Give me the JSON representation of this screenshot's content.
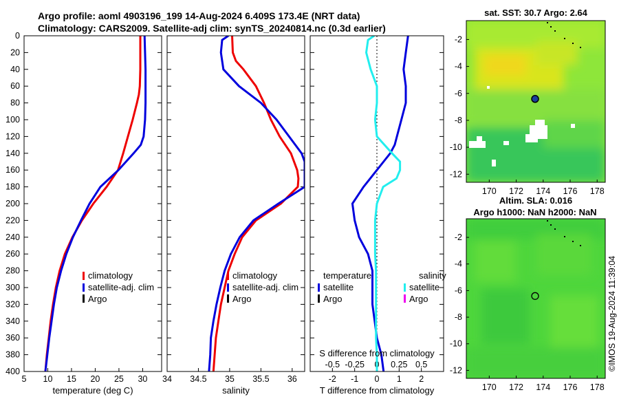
{
  "header": {
    "line1": "Argo profile: aoml  4903196_199 14-Aug-2024 6.409S 173.4E (NRT data)",
    "line2": "Climatology: CARS2009. Satellite-adj clim: synTS_20240814.nc (0.3d earlier)"
  },
  "colors": {
    "climatology": "#ee0000",
    "satellite": "#0000dd",
    "satellite_salinity": "#22eeee",
    "argo": "#000000",
    "argo_salinity": "#ee00ee"
  },
  "depth_axis": {
    "ylim": [
      0,
      400
    ],
    "ticks": [
      "0",
      "20",
      "40",
      "60",
      "80",
      "100",
      "120",
      "140",
      "160",
      "180",
      "200",
      "220",
      "240",
      "260",
      "280",
      "300",
      "320",
      "340",
      "360",
      "380",
      "400"
    ]
  },
  "legend_profile": {
    "climatology": "climatology",
    "satellite": "satellite-adj. clim",
    "argo": "Argo"
  },
  "legend_diff": {
    "temperature_header": "temperature",
    "salinity_header": "salinity",
    "t_satellite": "satellite",
    "t_argo": "Argo",
    "s_satellite": "satellite",
    "s_argo": "Argo"
  },
  "chart_data": [
    {
      "type": "line",
      "name": "temperature-profile",
      "xlabel": "temperature (deg C)",
      "ylabel": "depth",
      "xlim": [
        5,
        34
      ],
      "ylim": [
        0,
        400
      ],
      "xticks": [
        "5",
        "10",
        "15",
        "20",
        "25",
        "30"
      ],
      "series": [
        {
          "name": "climatology",
          "depth": [
            0,
            20,
            40,
            60,
            70,
            80,
            100,
            120,
            140,
            160,
            180,
            200,
            220,
            240,
            260,
            280,
            300,
            320,
            340,
            360,
            380,
            400
          ],
          "values": [
            29.5,
            29.5,
            29.5,
            29.4,
            29.2,
            28.8,
            27.9,
            26.9,
            25.9,
            24.8,
            22.4,
            19.6,
            17.2,
            15.2,
            13.6,
            12.5,
            11.7,
            11.1,
            10.6,
            10.2,
            9.8,
            9.5
          ]
        },
        {
          "name": "satellite-adj. clim",
          "depth": [
            0,
            20,
            40,
            60,
            80,
            100,
            120,
            130,
            140,
            160,
            180,
            200,
            220,
            240,
            260,
            280,
            300,
            320,
            340,
            360,
            380,
            400
          ],
          "values": [
            30.4,
            30.5,
            30.6,
            30.6,
            30.6,
            30.5,
            30.2,
            29.6,
            28.1,
            24.9,
            21.1,
            18.8,
            17.0,
            15.3,
            13.9,
            12.8,
            11.9,
            11.3,
            10.8,
            10.3,
            9.9,
            9.5
          ]
        }
      ]
    },
    {
      "type": "line",
      "name": "salinity-profile",
      "xlabel": "salinity",
      "ylabel": "depth",
      "xlim": [
        34.0,
        36.2
      ],
      "ylim": [
        0,
        400
      ],
      "xticks": [
        "34",
        "34.5",
        "35",
        "35.5",
        "36"
      ],
      "series": [
        {
          "name": "climatology",
          "depth": [
            0,
            20,
            30,
            40,
            60,
            80,
            100,
            120,
            140,
            160,
            170,
            180,
            200,
            220,
            240,
            260,
            280,
            300,
            320,
            340,
            360,
            380,
            400
          ],
          "values": [
            35.04,
            35.05,
            35.1,
            35.22,
            35.42,
            35.55,
            35.66,
            35.8,
            35.98,
            36.08,
            36.1,
            36.09,
            35.82,
            35.42,
            35.2,
            35.08,
            34.98,
            34.92,
            34.86,
            34.82,
            34.78,
            34.76,
            34.74
          ]
        },
        {
          "name": "satellite-adj. clim",
          "depth": [
            0,
            5,
            20,
            40,
            60,
            80,
            100,
            120,
            140,
            150,
            160,
            170,
            180,
            200,
            220,
            240,
            260,
            280,
            300,
            320,
            340,
            360,
            380,
            400
          ],
          "values": [
            34.98,
            34.88,
            34.86,
            34.9,
            35.15,
            35.5,
            35.75,
            35.95,
            36.15,
            36.2,
            36.2,
            36.2,
            36.2,
            35.78,
            35.38,
            35.16,
            35.02,
            34.92,
            34.85,
            34.79,
            34.74,
            34.7,
            34.69,
            34.67
          ]
        }
      ]
    },
    {
      "type": "line",
      "name": "difference-profile",
      "xlabel": "T difference from climatology",
      "x2label": "S difference from climatology",
      "ylabel": "depth",
      "xlim": [
        -3,
        3
      ],
      "x2lim": [
        -0.75,
        0.75
      ],
      "ylim": [
        0,
        400
      ],
      "xticks": [
        "-2",
        "-1",
        "0",
        "1",
        "2"
      ],
      "x2ticks": [
        "-0.5",
        "-0.25",
        "0",
        "0.25",
        "0.5"
      ],
      "series": [
        {
          "name": "temperature satellite",
          "axis": "T",
          "depth": [
            0,
            20,
            40,
            60,
            80,
            100,
            120,
            130,
            140,
            150,
            160,
            170,
            180,
            200,
            220,
            240,
            260,
            280,
            300,
            320,
            340,
            360,
            380,
            400
          ],
          "values": [
            1.4,
            1.3,
            1.2,
            1.3,
            1.3,
            1.1,
            0.9,
            0.8,
            0.6,
            0.3,
            0.0,
            -0.3,
            -0.6,
            -1.1,
            -1.0,
            -0.8,
            -0.4,
            -0.2,
            -0.2,
            -0.2,
            -0.1,
            0.0,
            0.2,
            0.3
          ]
        },
        {
          "name": "salinity satellite",
          "axis": "S",
          "depth": [
            0,
            5,
            20,
            40,
            60,
            80,
            100,
            120,
            140,
            150,
            160,
            170,
            180,
            200,
            220,
            240,
            260,
            280,
            300,
            320,
            340,
            360,
            380,
            400
          ],
          "values": [
            -0.03,
            -0.1,
            -0.12,
            -0.07,
            0.0,
            0.0,
            -0.02,
            0.0,
            0.17,
            0.26,
            0.26,
            0.22,
            0.07,
            0.0,
            -0.02,
            -0.02,
            -0.02,
            -0.01,
            -0.01,
            -0.01,
            -0.01,
            -0.01,
            0.0,
            0.0
          ]
        }
      ]
    },
    {
      "type": "heatmap",
      "name": "sst-map",
      "title": "sat. SST: 30.7  Argo: 2.64",
      "xticks": [
        "170",
        "172",
        "174",
        "176",
        "178"
      ],
      "yticks": [
        "-2",
        "-4",
        "-6",
        "-8",
        "-10",
        "-12"
      ],
      "xlim": [
        168.3,
        178.6
      ],
      "ylim": [
        -12.6,
        -0.6
      ],
      "argo_marker": {
        "lon": 173.4,
        "lat": -6.409
      }
    },
    {
      "type": "heatmap",
      "name": "sla-map",
      "title": "Altim. SLA: 0.016",
      "subtitle": "Argo h1000: NaN h2000: NaN",
      "xticks": [
        "170",
        "172",
        "174",
        "176",
        "178"
      ],
      "yticks": [
        "-2",
        "-4",
        "-6",
        "-8",
        "-10",
        "-12"
      ],
      "xlim": [
        168.3,
        178.6
      ],
      "ylim": [
        -12.6,
        -0.6
      ],
      "argo_marker": {
        "lon": 173.4,
        "lat": -6.409
      }
    }
  ],
  "watermark": "©IMOS 19-Aug-2024 11:39:04"
}
